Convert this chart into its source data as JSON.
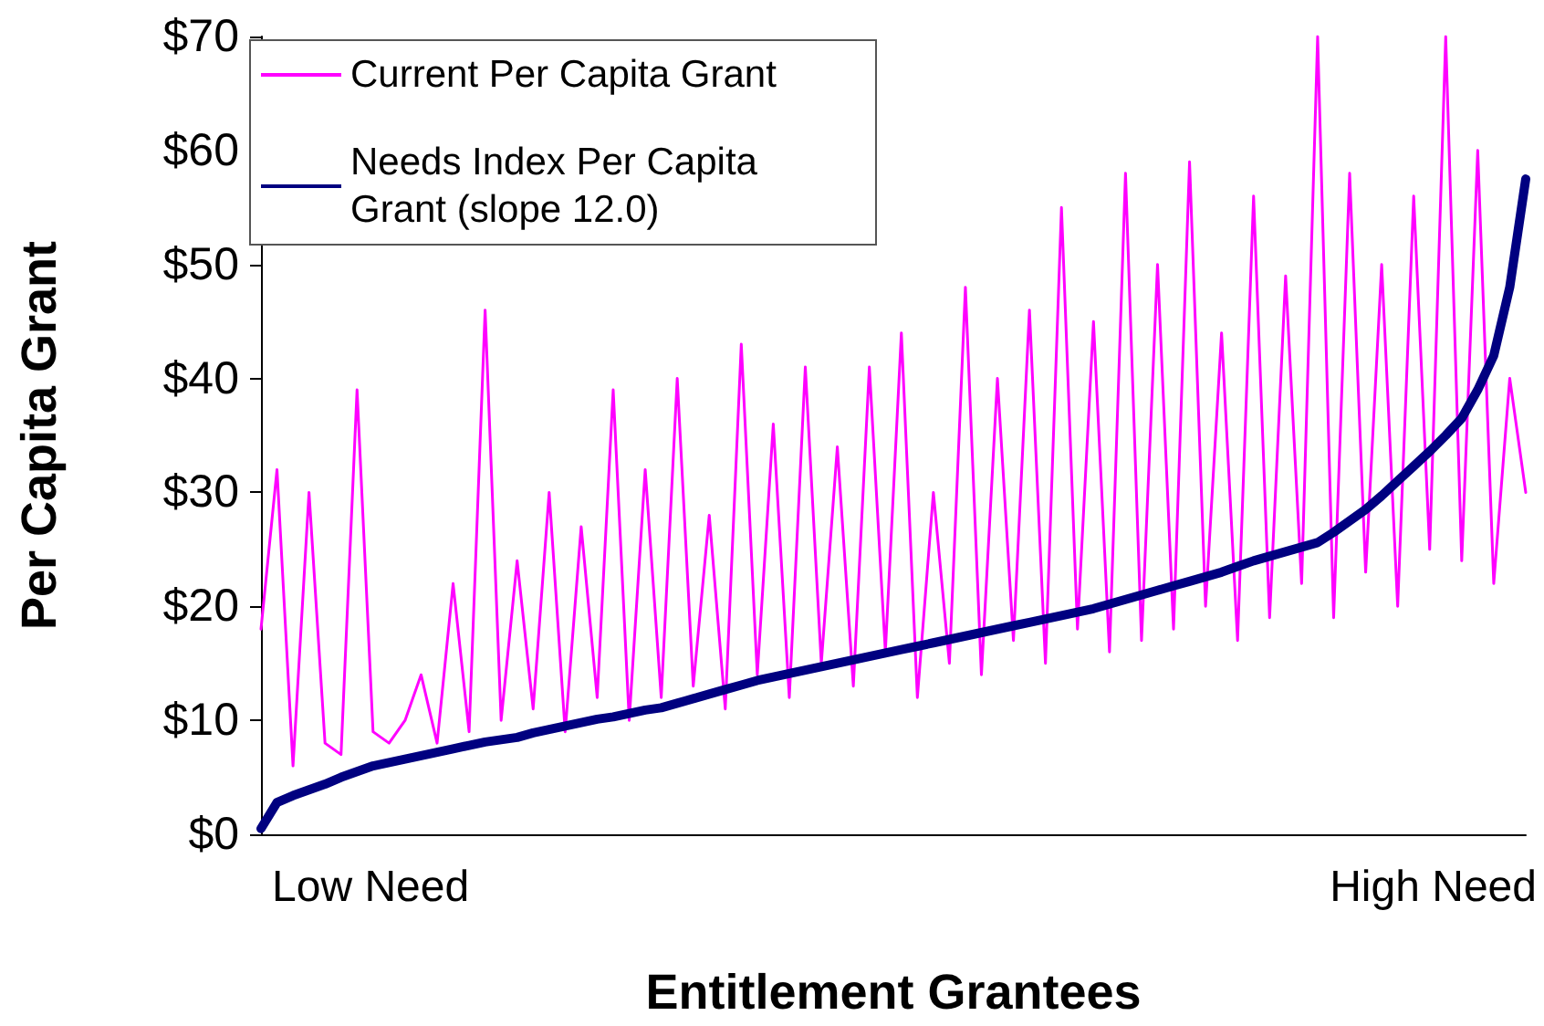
{
  "chart_data": {
    "type": "line",
    "xlabel": "Entitlement Grantees",
    "ylabel": "Per Capita Grant",
    "categories": [
      null,
      null,
      null,
      null,
      null,
      null,
      null,
      null,
      null,
      null,
      null,
      null,
      null,
      null,
      null,
      null,
      null,
      null,
      null,
      null,
      null,
      null,
      null,
      null,
      null,
      null,
      null,
      null,
      null,
      null,
      null,
      null,
      null,
      null,
      null,
      null,
      null,
      null,
      null,
      null,
      null,
      null,
      null,
      null,
      null,
      null,
      null,
      null,
      null,
      null,
      null,
      null,
      null,
      null,
      null,
      null,
      null,
      null,
      null,
      null,
      null,
      null,
      null,
      null,
      null,
      null,
      null,
      null,
      null,
      null,
      null,
      null,
      null,
      null,
      null,
      null,
      null,
      null,
      null,
      null
    ],
    "series": [
      {
        "name": "Current Per Capita Grant",
        "color": "#ff00ff",
        "line_style": "solid",
        "values": [
          18,
          32,
          6,
          30,
          8,
          7,
          39,
          9,
          8,
          10,
          14,
          8,
          22,
          9,
          46,
          10,
          24,
          11,
          30,
          9,
          27,
          12,
          39,
          10,
          32,
          12,
          40,
          13,
          28,
          11,
          43,
          14,
          36,
          12,
          41,
          15,
          34,
          13,
          41,
          16,
          44,
          12,
          30,
          15,
          48,
          14,
          40,
          17,
          46,
          15,
          55,
          18,
          45,
          16,
          58,
          17,
          50,
          18,
          59,
          20,
          44,
          17,
          56,
          19,
          49,
          22,
          70,
          19,
          58,
          23,
          50,
          20,
          56,
          25,
          70,
          24,
          60,
          22,
          40,
          30
        ]
      },
      {
        "name": "Needs Index Per Capita Grant (slope 12.0)",
        "color": "#000080",
        "line_style": "solid",
        "values": [
          0.5,
          2.8,
          3.4,
          3.9,
          4.4,
          5,
          5.5,
          6,
          6.3,
          6.6,
          6.9,
          7.2,
          7.5,
          7.8,
          8.1,
          8.3,
          8.5,
          8.9,
          9.2,
          9.5,
          9.8,
          10.1,
          10.3,
          10.6,
          10.9,
          11.1,
          11.5,
          11.9,
          12.3,
          12.7,
          13.1,
          13.5,
          13.8,
          14.1,
          14.4,
          14.7,
          15,
          15.3,
          15.6,
          15.9,
          16.2,
          16.5,
          16.8,
          17.1,
          17.4,
          17.7,
          18,
          18.3,
          18.6,
          18.9,
          19.2,
          19.5,
          19.8,
          20.2,
          20.6,
          21,
          21.4,
          21.8,
          22.2,
          22.6,
          23,
          23.5,
          24,
          24.4,
          24.8,
          25.2,
          25.6,
          26.5,
          27.5,
          28.5,
          29.7,
          31,
          32.3,
          33.6,
          35,
          36.5,
          39,
          42,
          48,
          57.5
        ]
      }
    ],
    "ylim": [
      0,
      70
    ],
    "yticks": [
      {
        "value": 0,
        "label": "$0"
      },
      {
        "value": 10,
        "label": "$10"
      },
      {
        "value": 20,
        "label": "$20"
      },
      {
        "value": 30,
        "label": "$30"
      },
      {
        "value": 40,
        "label": "$40"
      },
      {
        "value": 50,
        "label": "$50"
      },
      {
        "value": 60,
        "label": "$60"
      },
      {
        "value": 70,
        "label": "$70"
      }
    ],
    "grid": false,
    "legend": "top left",
    "tick_labels": "y",
    "annotations": [
      "Low Need",
      "High Need"
    ]
  }
}
